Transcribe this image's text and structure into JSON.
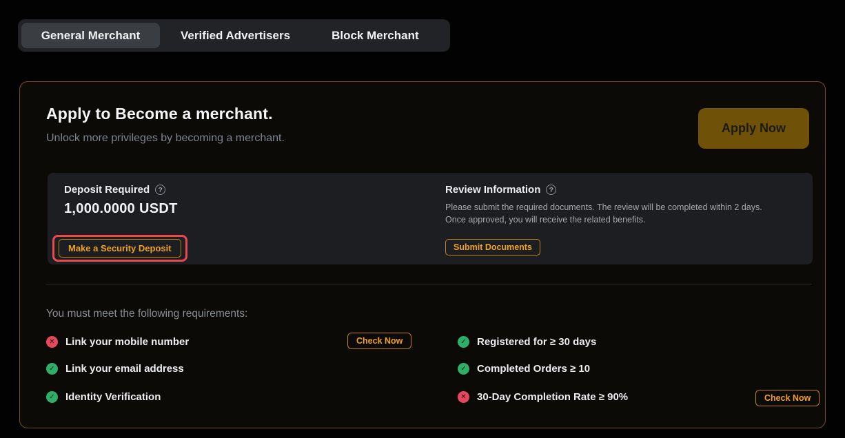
{
  "colors": {
    "accent_orange": "#F0A11C",
    "apply_button_bg": "#6F5208",
    "card_border": "#7A4E18",
    "highlight_red": "#E84A4E",
    "pass_green": "#2FAE68",
    "fail_red": "#E5485C",
    "panel_bg": "#1D1E21"
  },
  "tabs": {
    "items": [
      {
        "label": "General Merchant",
        "active": true
      },
      {
        "label": "Verified Advertisers",
        "active": false
      },
      {
        "label": "Block Merchant",
        "active": false
      }
    ]
  },
  "card": {
    "title": "Apply to Become a merchant.",
    "subtitle": "Unlock more privileges by becoming a merchant.",
    "apply_button_label": "Apply Now",
    "deposit": {
      "label": "Deposit Required",
      "help_icon": "question-circle",
      "amount": "1,000.0000 USDT",
      "button_label": "Make a Security Deposit"
    },
    "review": {
      "label": "Review Information",
      "help_icon": "question-circle",
      "description": "Please submit the required documents. The review will be completed within 2 days. Once approved, you will receive the related benefits.",
      "button_label": "Submit Documents"
    },
    "requirements": {
      "heading": "You must meet the following requirements:",
      "left": [
        {
          "label": "Link your mobile number",
          "status": "fail",
          "action_label": "Check Now"
        },
        {
          "label": "Link your email address",
          "status": "pass"
        },
        {
          "label": "Identity Verification",
          "status": "pass"
        }
      ],
      "right": [
        {
          "label": "Registered for ≥ 30 days",
          "status": "pass"
        },
        {
          "label": "Completed Orders ≥ 10",
          "status": "pass"
        },
        {
          "label": "30-Day Completion Rate ≥ 90%",
          "status": "fail",
          "action_label": "Check Now"
        }
      ]
    }
  }
}
